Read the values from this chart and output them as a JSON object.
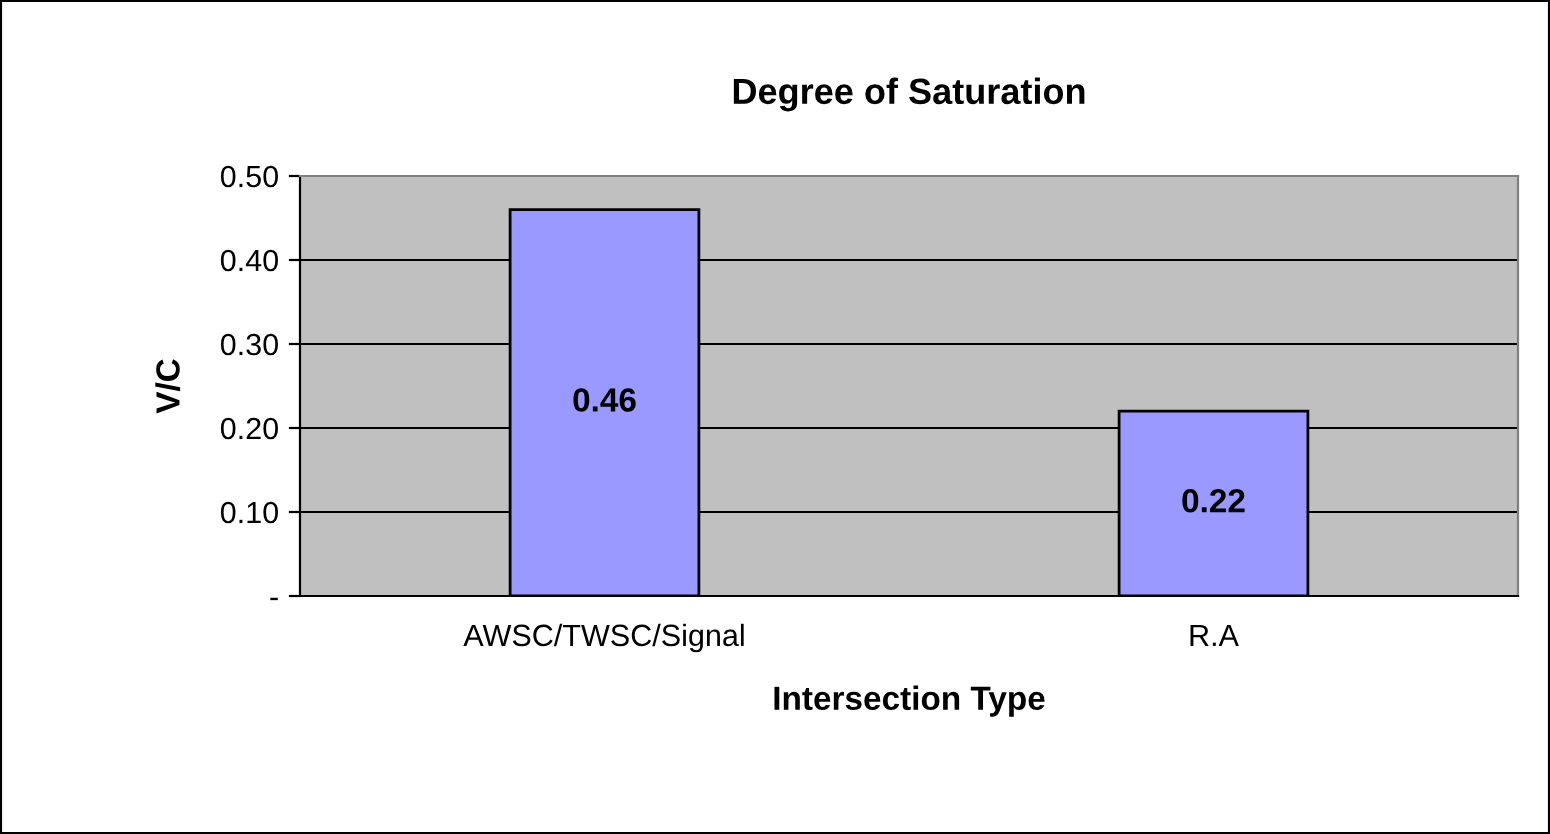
{
  "chart_data": {
    "type": "bar",
    "title": "Degree of Saturation",
    "xlabel": "Intersection Type",
    "ylabel": "V/C",
    "categories": [
      "AWSC/TWSC/Signal",
      "R.A"
    ],
    "values": [
      0.46,
      0.22
    ],
    "color": "#9999ff",
    "ylim": [
      0,
      0.5
    ],
    "yticks": [
      {
        "value": 0,
        "label": "-"
      },
      {
        "value": 0.1,
        "label": "0.10"
      },
      {
        "value": 0.2,
        "label": "0.20"
      },
      {
        "value": 0.3,
        "label": "0.30"
      },
      {
        "value": 0.4,
        "label": "0.40"
      },
      {
        "value": 0.5,
        "label": "0.50"
      }
    ],
    "grid": "y",
    "legend": false,
    "data_labels": true
  }
}
